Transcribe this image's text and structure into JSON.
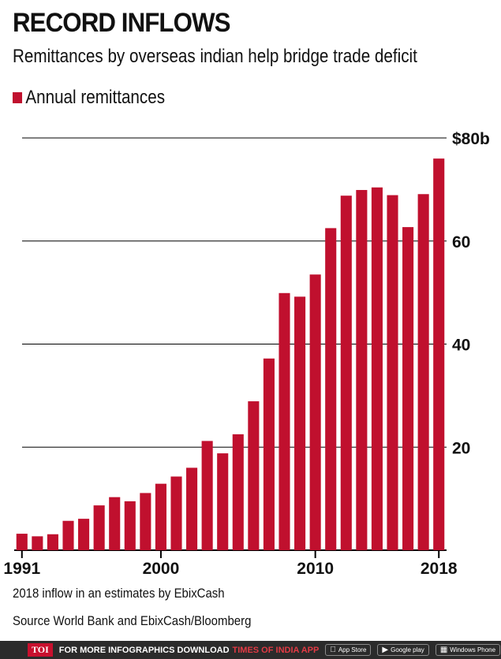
{
  "header": {
    "title": "RECORD INFLOWS",
    "subtitle": "Remittances by overseas indian help bridge trade deficit"
  },
  "legend": {
    "label": "Annual remittances"
  },
  "notes": {
    "line1": "2018 inflow in an estimates by EbixCash",
    "line2": "Source World Bank and EbixCash/Bloomberg"
  },
  "footer": {
    "logo": "TOI",
    "text": "FOR MORE  INFOGRAPHICS DOWNLOAD",
    "brand": "TIMES OF INDIA  APP",
    "app_store": "App Store",
    "google_play": "Google play",
    "windows_phone": "Windows Phone"
  },
  "colors": {
    "bar": "#c0102e",
    "grid": "#000000",
    "footer_bg": "#2b2b2b"
  },
  "chart_data": {
    "type": "bar",
    "title": "RECORD INFLOWS",
    "subtitle": "Remittances by overseas indian help bridge trade deficit",
    "xlabel": "",
    "ylabel": "",
    "ylim": [
      0,
      80
    ],
    "grid": true,
    "legend_position": "top-left",
    "categories": [
      1991,
      1992,
      1993,
      1994,
      1995,
      1996,
      1997,
      1998,
      1999,
      2000,
      2001,
      2002,
      2003,
      2004,
      2005,
      2006,
      2007,
      2008,
      2009,
      2010,
      2011,
      2012,
      2013,
      2014,
      2015,
      2016,
      2017,
      2018
    ],
    "series": [
      {
        "name": "Annual remittances",
        "values": [
          3.2,
          2.7,
          3.1,
          5.7,
          6.1,
          8.7,
          10.3,
          9.5,
          11.1,
          12.9,
          14.3,
          16.0,
          21.2,
          18.8,
          22.5,
          28.9,
          37.2,
          49.9,
          49.2,
          53.5,
          62.5,
          68.8,
          69.9,
          70.4,
          68.9,
          62.7,
          69.1,
          76.0
        ]
      }
    ],
    "y_ticks": [
      {
        "value": 20,
        "label": "20"
      },
      {
        "value": 40,
        "label": "40"
      },
      {
        "value": 60,
        "label": "60"
      },
      {
        "value": 80,
        "label": "$80b"
      }
    ],
    "x_ticks": [
      {
        "value": 1991,
        "label": "1991"
      },
      {
        "value": 2000,
        "label": "2000"
      },
      {
        "value": 2010,
        "label": "2010"
      },
      {
        "value": 2018,
        "label": "2018"
      }
    ]
  }
}
